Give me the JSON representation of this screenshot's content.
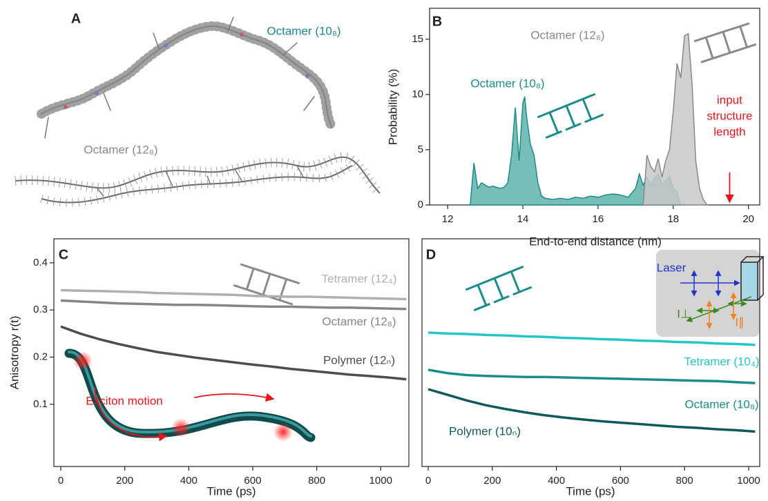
{
  "chart_data": [
    {
      "type": "structures",
      "panel": "A",
      "labels": [
        {
          "text": "Octamer (10₈)",
          "color": "#1a8c8c"
        },
        {
          "text": "Octamer (12₈)",
          "color": "#888888"
        }
      ]
    },
    {
      "type": "area",
      "panel": "B",
      "xlabel": "End-to-end distance (nm)",
      "ylabel": "Probability (%)",
      "xlim": [
        11.52,
        20.3
      ],
      "ylim": [
        0,
        17.8
      ],
      "xticks": [
        12,
        14,
        16,
        18,
        20
      ],
      "yticks": [
        0,
        5,
        10,
        15
      ],
      "series": [
        {
          "name": "Octamer (10₈)",
          "color": "#1a8c8c",
          "fill": "#5fb3ad",
          "x": [
            12.6,
            12.7,
            12.8,
            12.9,
            13.0,
            13.1,
            13.2,
            13.3,
            13.4,
            13.5,
            13.6,
            13.7,
            13.8,
            13.9,
            14.0,
            14.05,
            14.1,
            14.2,
            14.3,
            14.4,
            14.5,
            14.6,
            14.8,
            15.0,
            15.2,
            15.4,
            15.6,
            15.8,
            16.0,
            16.2,
            16.4,
            16.6,
            16.8,
            17.0,
            17.1,
            17.2,
            17.3,
            17.4,
            17.5,
            17.6,
            17.7,
            17.8,
            17.9,
            18.0,
            18.1,
            18.2
          ],
          "values": [
            0,
            3.8,
            1.5,
            2.0,
            1.8,
            1.6,
            1.7,
            1.6,
            1.5,
            1.6,
            2.0,
            4.5,
            8.8,
            4.0,
            9.2,
            9.8,
            8.0,
            5.5,
            4.5,
            2.0,
            0.8,
            0.6,
            0.5,
            0.6,
            0.5,
            0.7,
            0.6,
            0.8,
            0.7,
            0.9,
            1.0,
            0.9,
            0.7,
            1.5,
            2.8,
            1.8,
            2.5,
            1.8,
            2.4,
            2.8,
            1.9,
            2.2,
            2.6,
            1.5,
            1.2,
            0
          ]
        },
        {
          "name": "Octamer (12₈)",
          "color": "#888888",
          "fill": "#c8c8c8",
          "x": [
            17.2,
            17.3,
            17.4,
            17.5,
            17.6,
            17.7,
            17.8,
            17.9,
            18.0,
            18.1,
            18.2,
            18.3,
            18.4,
            18.5,
            18.6,
            18.7,
            18.8,
            18.9
          ],
          "values": [
            0,
            4.5,
            3.5,
            3.0,
            4.2,
            2.5,
            4.0,
            5.0,
            8.5,
            12.8,
            11.5,
            15.3,
            15.5,
            11.0,
            4.0,
            1.5,
            0.5,
            0
          ]
        }
      ],
      "annotations": [
        {
          "lines": [
            "input",
            "structure",
            "length"
          ],
          "color": "#e8141b",
          "arrow_x": 19.5
        }
      ]
    },
    {
      "type": "line",
      "panel": "C",
      "xlabel": "Time (ps)",
      "ylabel": "Anisotropy r(t)",
      "xlim": [
        -21.6,
        1088
      ],
      "ylim": [
        -0.032,
        0.451
      ],
      "xticks": [
        0,
        200,
        400,
        600,
        800,
        1000
      ],
      "yticks": [
        0.1,
        0.2,
        0.3,
        0.4
      ],
      "x": [
        0,
        60,
        120,
        180,
        240,
        300,
        360,
        420,
        480,
        540,
        600,
        660,
        720,
        780,
        840,
        900,
        960,
        1020,
        1080
      ],
      "series": [
        {
          "name": "Tetramer  (12₄)",
          "color": "#b0b0b0",
          "values": [
            0.342,
            0.341,
            0.34,
            0.339,
            0.338,
            0.336,
            0.335,
            0.334,
            0.333,
            0.332,
            0.33,
            0.329,
            0.328,
            0.328,
            0.327,
            0.326,
            0.325,
            0.324,
            0.323
          ]
        },
        {
          "name": "Octamer (12₈)",
          "color": "#858585",
          "values": [
            0.32,
            0.318,
            0.316,
            0.314,
            0.313,
            0.312,
            0.311,
            0.311,
            0.31,
            0.309,
            0.308,
            0.307,
            0.307,
            0.306,
            0.305,
            0.305,
            0.304,
            0.303,
            0.302
          ]
        },
        {
          "name": "Polymer (12ₙ)",
          "color": "#4d4d4d",
          "values": [
            0.265,
            0.25,
            0.238,
            0.228,
            0.219,
            0.211,
            0.205,
            0.199,
            0.194,
            0.189,
            0.184,
            0.18,
            0.175,
            0.171,
            0.167,
            0.163,
            0.16,
            0.157,
            0.153
          ]
        }
      ],
      "annotations": [
        {
          "text": "Exciton motion",
          "color": "#e8141b"
        }
      ]
    },
    {
      "type": "line",
      "panel": "D",
      "xlabel": "Time (ps)",
      "xlim": [
        -19.4,
        1034.5
      ],
      "ylim": [
        -0.032,
        0.451
      ],
      "xticks": [
        0,
        200,
        400,
        600,
        800,
        1000
      ],
      "x": [
        0,
        60,
        120,
        180,
        240,
        300,
        360,
        420,
        480,
        540,
        600,
        660,
        720,
        780,
        840,
        900,
        960,
        1020
      ],
      "series": [
        {
          "name": "Tetramer (10₄)",
          "color": "#22c6c6",
          "values": [
            0.252,
            0.25,
            0.249,
            0.247,
            0.246,
            0.244,
            0.243,
            0.241,
            0.24,
            0.238,
            0.237,
            0.235,
            0.234,
            0.232,
            0.231,
            0.229,
            0.228,
            0.226
          ]
        },
        {
          "name": "Octamer (10₈)",
          "color": "#1a8c8c",
          "values": [
            0.173,
            0.166,
            0.162,
            0.16,
            0.159,
            0.158,
            0.158,
            0.157,
            0.156,
            0.155,
            0.154,
            0.153,
            0.152,
            0.151,
            0.15,
            0.149,
            0.147,
            0.145
          ]
        },
        {
          "name": "Polymer (10ₙ)",
          "color": "#0e5a5a",
          "values": [
            0.132,
            0.12,
            0.108,
            0.098,
            0.09,
            0.083,
            0.077,
            0.072,
            0.068,
            0.064,
            0.061,
            0.058,
            0.055,
            0.052,
            0.05,
            0.047,
            0.045,
            0.042
          ]
        }
      ],
      "annotations": [
        {
          "text": "Laser",
          "color": "#2233cc"
        },
        {
          "text": "I⊥",
          "color": "#3a8a1a"
        },
        {
          "text": "I∥",
          "color": "#f08020"
        }
      ]
    }
  ]
}
